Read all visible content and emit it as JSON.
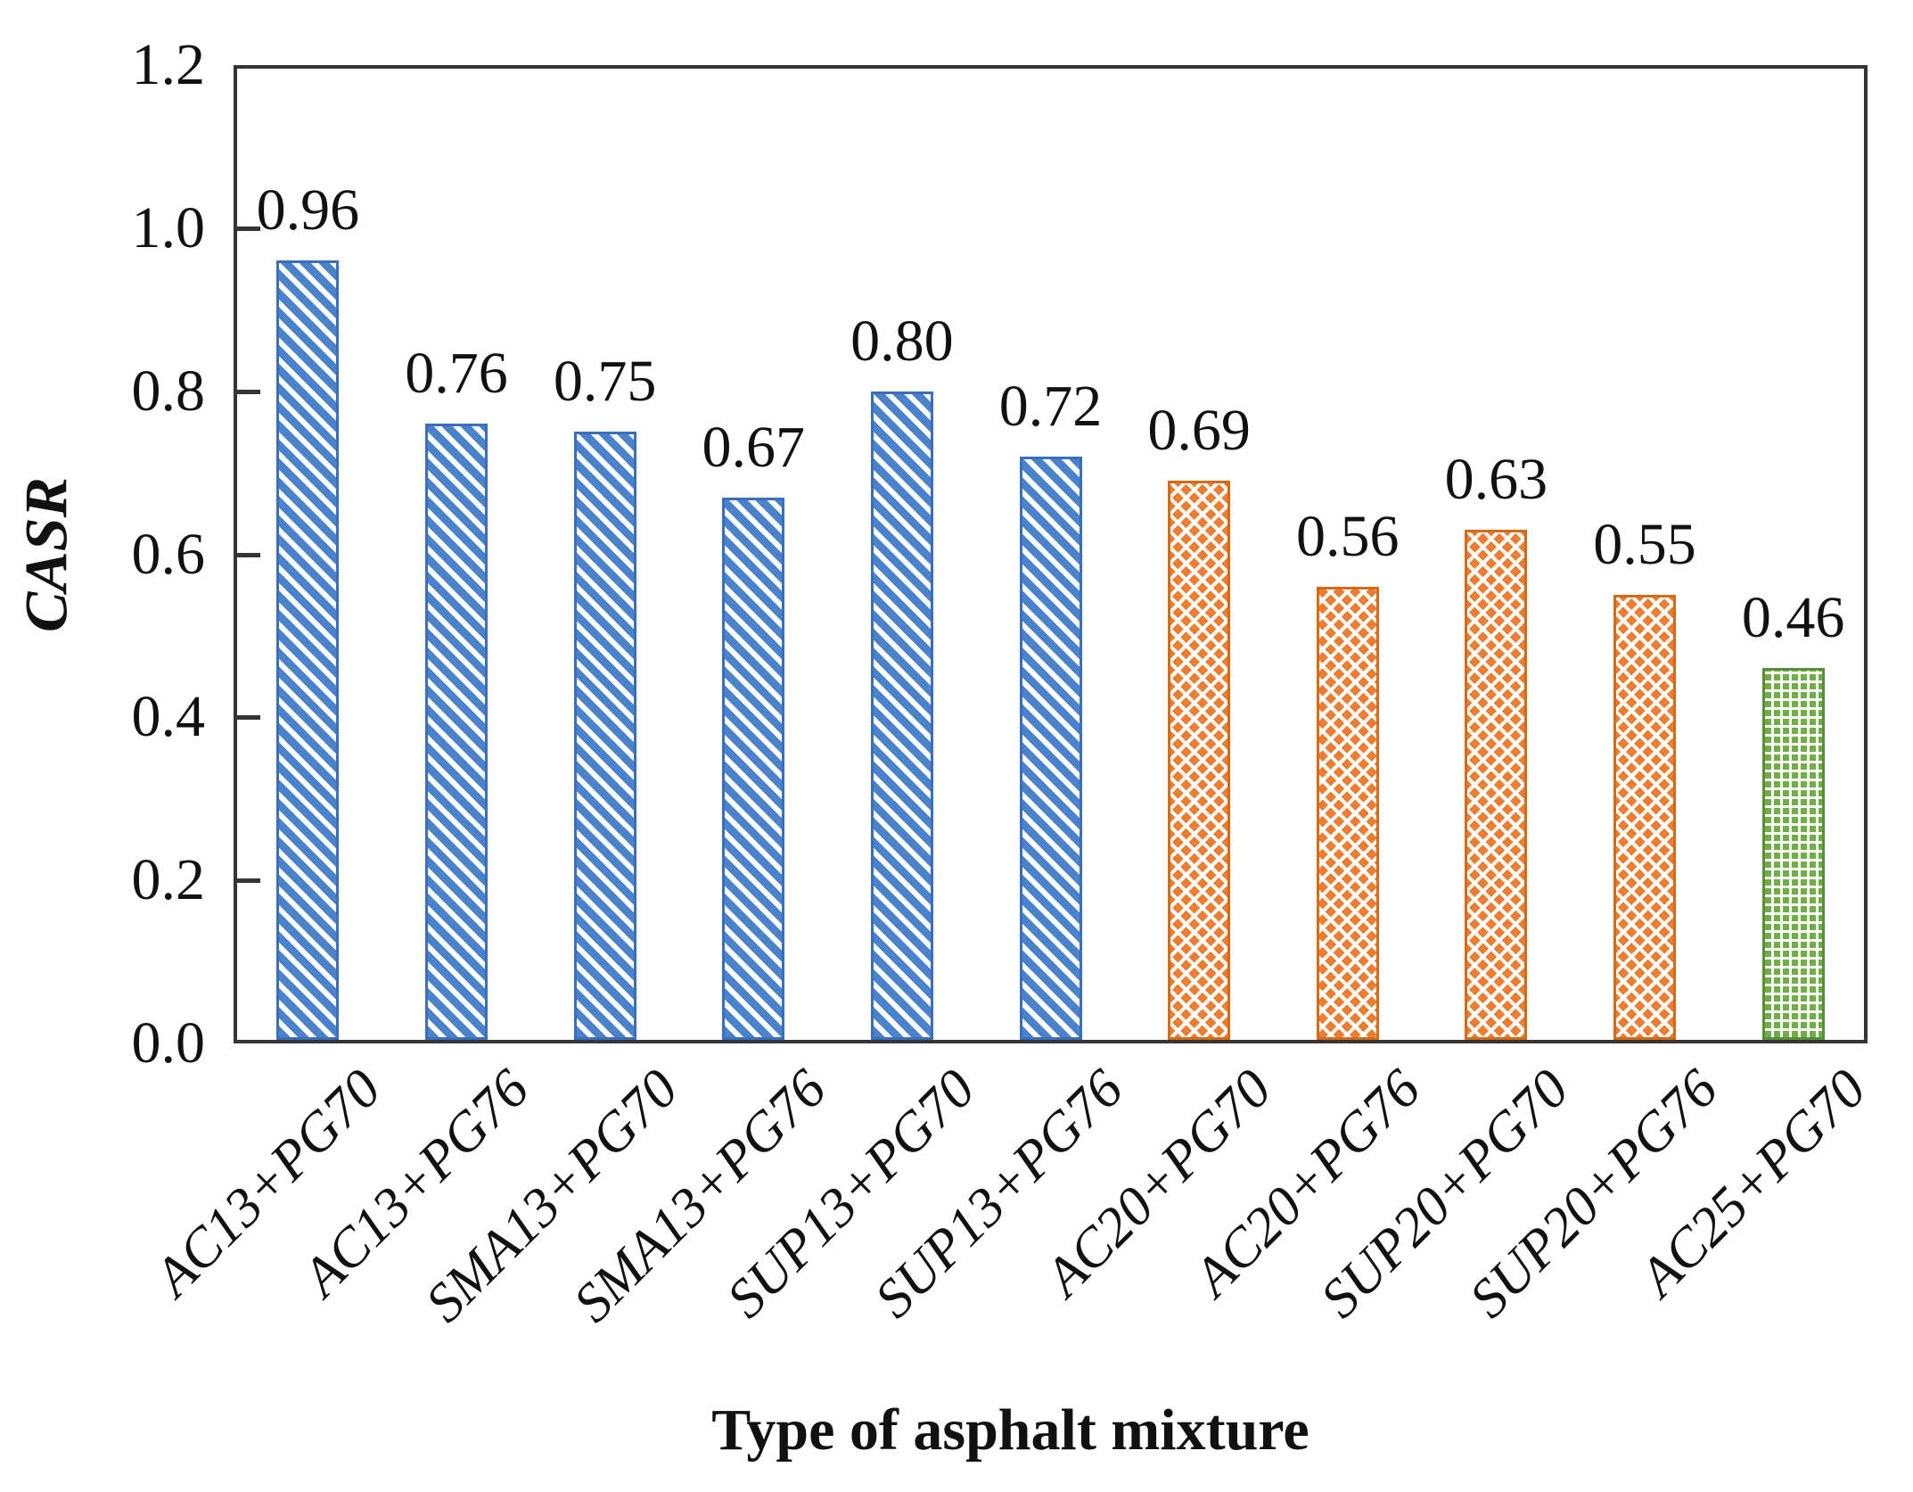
{
  "chart_data": {
    "type": "bar",
    "title": "",
    "xlabel": "Type of asphalt mixture",
    "ylabel": "CASR",
    "categories": [
      "AC13+PG70",
      "AC13+PG76",
      "SMA13+PG70",
      "SMA13+PG76",
      "SUP13+PG70",
      "SUP13+PG76",
      "AC20+PG70",
      "AC20+PG76",
      "SUP20+PG70",
      "SUP20+PG76",
      "AC25+PG70"
    ],
    "values": [
      0.96,
      0.76,
      0.75,
      0.67,
      0.8,
      0.72,
      0.69,
      0.56,
      0.63,
      0.55,
      0.46
    ],
    "value_labels": [
      "0.96",
      "0.76",
      "0.75",
      "0.67",
      "0.80",
      "0.72",
      "0.69",
      "0.56",
      "0.63",
      "0.55",
      "0.46"
    ],
    "groups": [
      "blue",
      "blue",
      "blue",
      "blue",
      "blue",
      "blue",
      "orange",
      "orange",
      "orange",
      "orange",
      "green"
    ],
    "ylim": [
      0,
      1.2
    ],
    "ytick_labels": [
      "0.0",
      "0.2",
      "0.4",
      "0.6",
      "0.8",
      "1.0",
      "1.2"
    ],
    "grid": false,
    "legend": "none",
    "colors": {
      "blue": "#4472C4",
      "orange": "#ED7D31",
      "green": "#70AD47"
    },
    "patterns": {
      "blue": "wide-downward-diagonal-stripes",
      "orange": "diamond-crosshatch-dots",
      "green": "dotted-grid"
    }
  }
}
